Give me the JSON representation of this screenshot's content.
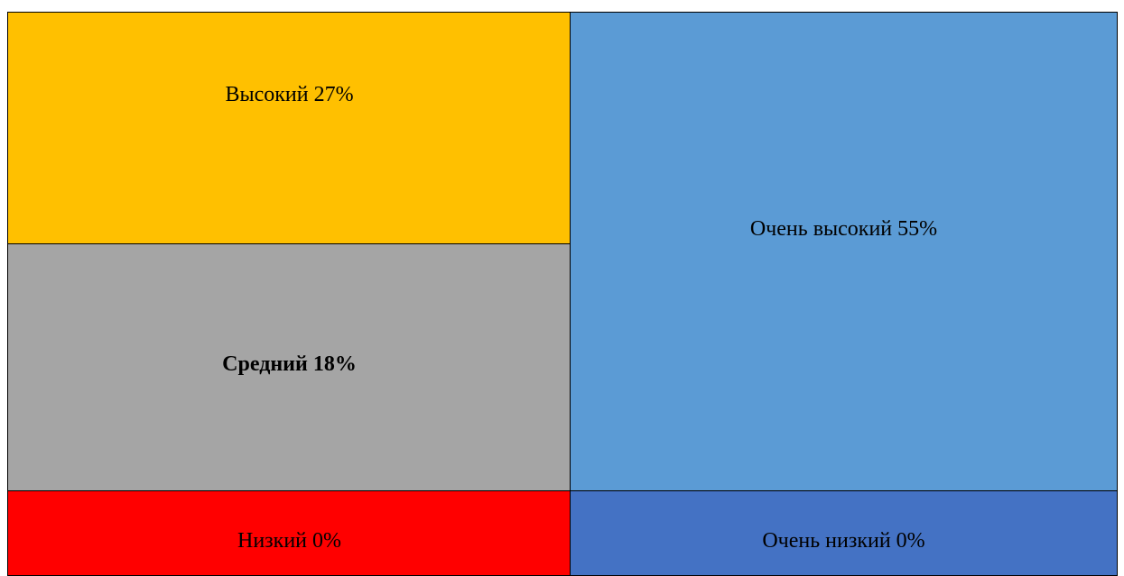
{
  "cells": [
    {
      "label": "Высокий 27%"
    },
    {
      "label": "Средний 18%"
    },
    {
      "label": "Очень высокий 55%"
    },
    {
      "label": "Низкий 0%"
    },
    {
      "label": "Очень низкий 0%"
    }
  ]
}
